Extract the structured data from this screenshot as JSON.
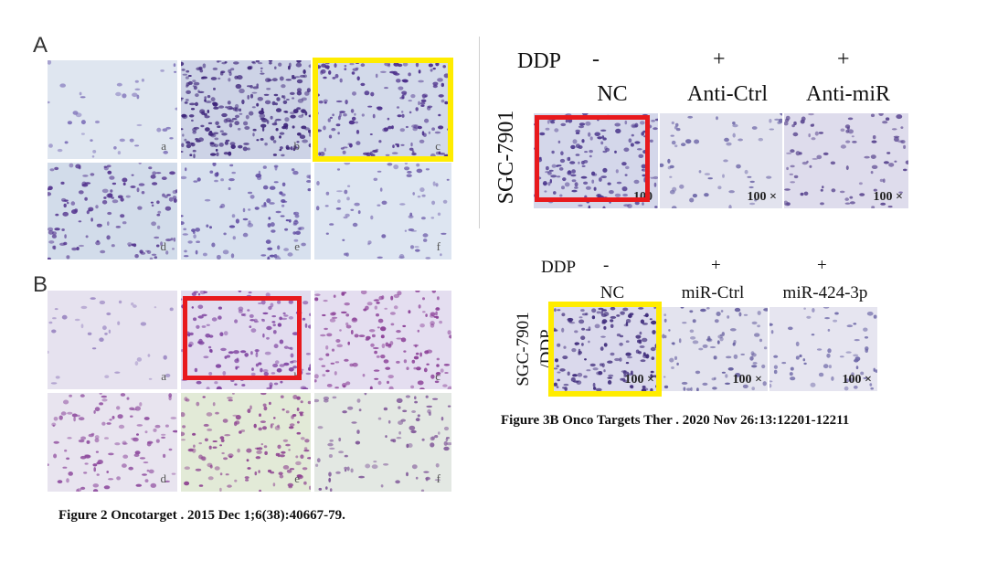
{
  "fig2": {
    "panel_a_letter": "A",
    "panel_b_letter": "B",
    "panel_a_labels": [
      "a",
      "b",
      "c",
      "d",
      "e",
      "f"
    ],
    "panel_b_labels": [
      "a",
      "b",
      "c",
      "d",
      "e",
      "f"
    ],
    "caption": "Figure 2 Oncotarget . 2015 Dec 1;6(38):40667-79."
  },
  "fig3b": {
    "top": {
      "ddp_label": "DDP",
      "ddp_values": [
        "-",
        "+",
        "+"
      ],
      "groups": [
        "NC",
        "Anti-Ctrl",
        "Anti-miR"
      ],
      "cell_line": "SGC-7901",
      "magnification": [
        "100",
        "100 ×",
        "100 ×"
      ]
    },
    "bottom": {
      "ddp_label": "DDP",
      "ddp_values": [
        "-",
        "+",
        "+"
      ],
      "groups": [
        "NC",
        "miR-Ctrl",
        "miR-424-3p"
      ],
      "cell_line_1": "SGC-7901",
      "cell_line_2": "/DDP",
      "magnification": [
        "100 ×",
        "100 ×",
        "100 ×"
      ]
    },
    "caption": "Figure 3B Onco Targets Ther . 2020 Nov 26:13:12201-12211"
  },
  "colors": {
    "highlight_yellow": "#ffec00",
    "highlight_red": "#e8191d",
    "stain_purple": "#5b3a8c"
  }
}
